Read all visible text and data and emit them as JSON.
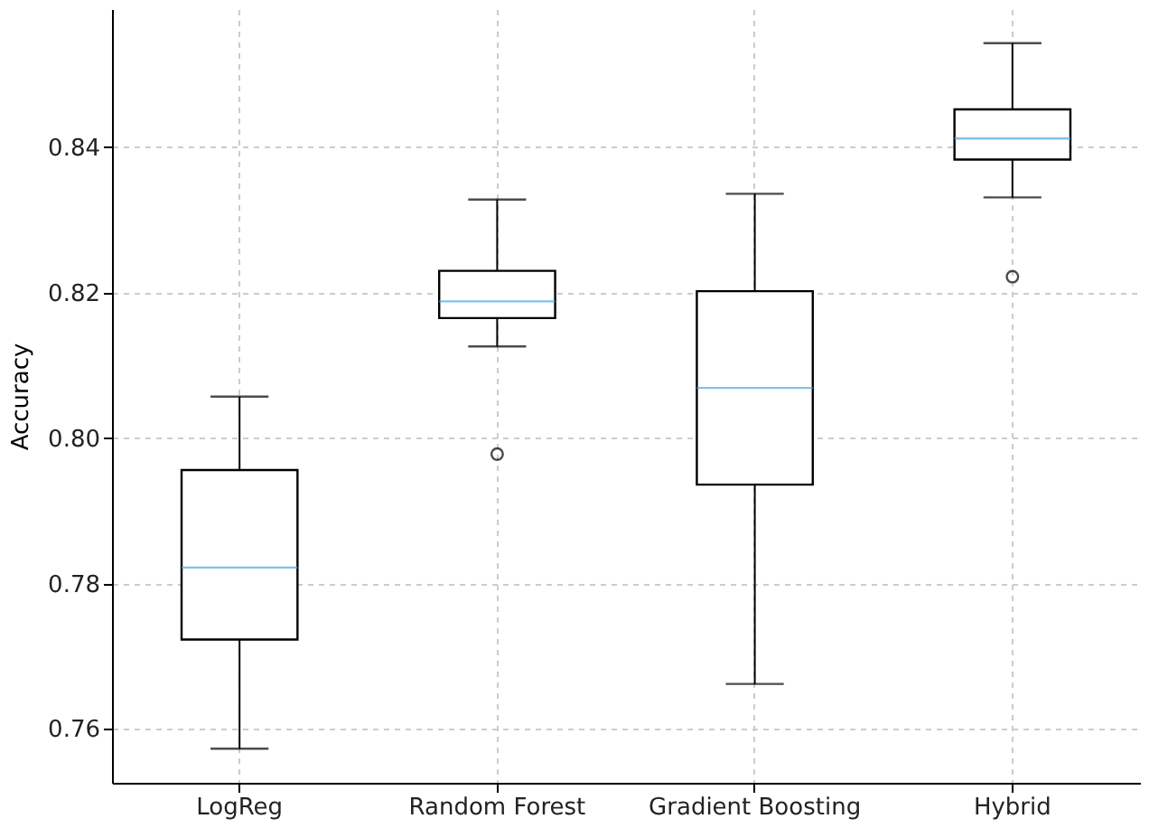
{
  "chart_data": {
    "type": "box",
    "ylabel": "Accuracy",
    "categories": [
      "LogReg",
      "Random Forest",
      "Gradient Boosting",
      "Hybrid"
    ],
    "boxes": [
      {
        "low": 0.7573,
        "q1": 0.7723,
        "median": 0.7822,
        "q3": 0.7956,
        "high": 0.8057
      },
      {
        "low": 0.8126,
        "q1": 0.8165,
        "median": 0.8188,
        "q3": 0.823,
        "high": 0.8328,
        "outliers": [
          0.7978
        ]
      },
      {
        "low": 0.7662,
        "q1": 0.7936,
        "median": 0.8069,
        "q3": 0.8202,
        "high": 0.8336
      },
      {
        "low": 0.8331,
        "q1": 0.8383,
        "median": 0.8412,
        "q3": 0.8452,
        "high": 0.8543,
        "outliers": [
          0.8222
        ]
      }
    ],
    "color": "#000000",
    "ylim": [
      0.7526,
      0.859
    ],
    "yticks": [
      0.76,
      0.78,
      {
        "value": 0.8,
        "label": "0.80"
      },
      0.82,
      0.84
    ],
    "grid": true
  }
}
